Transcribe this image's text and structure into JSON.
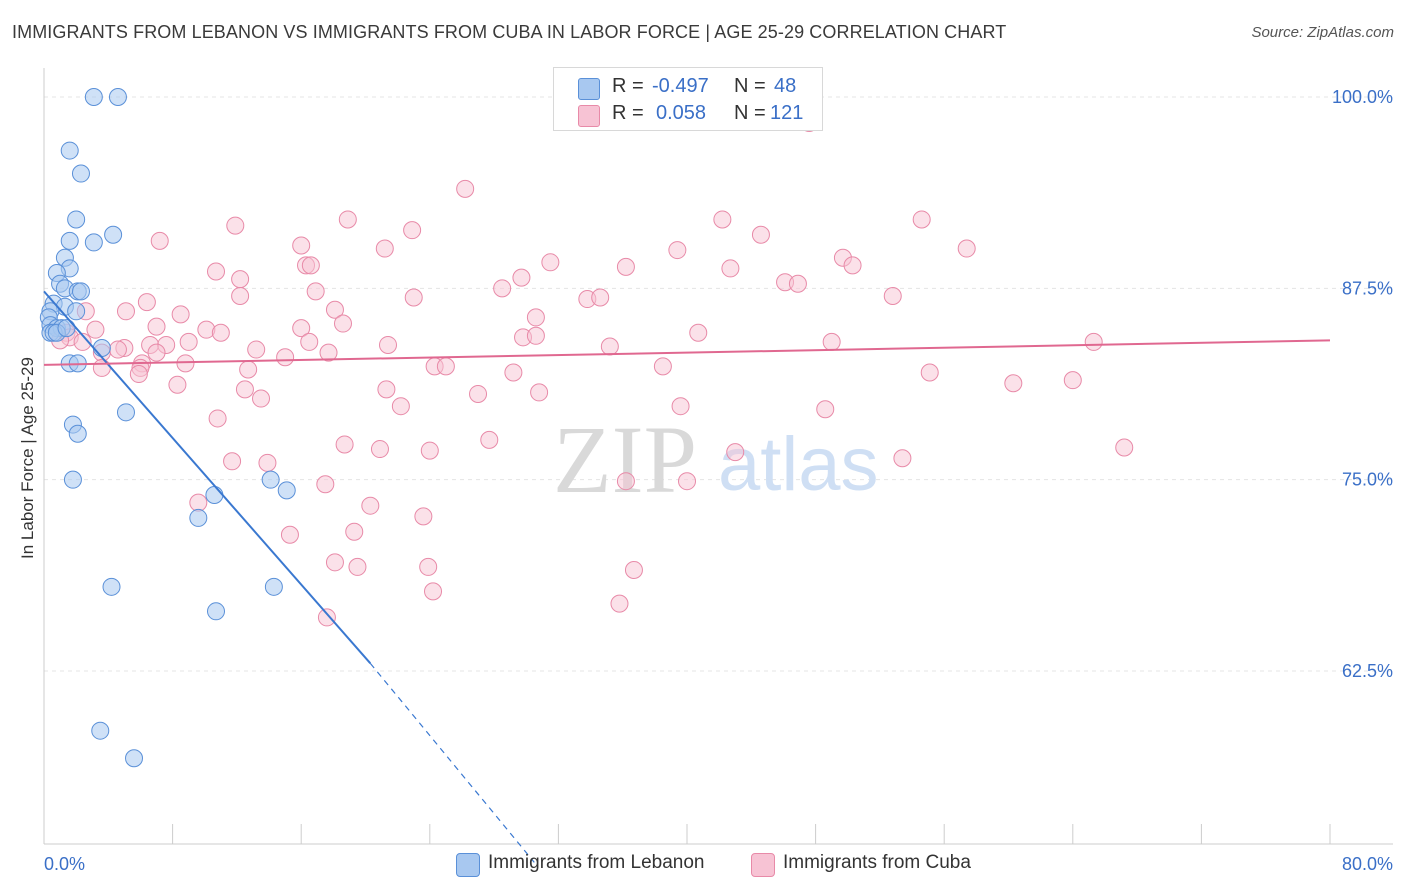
{
  "title": "IMMIGRANTS FROM LEBANON VS IMMIGRANTS FROM CUBA IN LABOR FORCE | AGE 25-29 CORRELATION CHART",
  "source": "Source: ZipAtlas.com",
  "watermark": {
    "zip": "ZIP",
    "atlas": "atlas"
  },
  "colors": {
    "lebanon_fill": "#a8c8f0",
    "lebanon_stroke": "#5a90d8",
    "lebanon_line": "#3a78d0",
    "cuba_fill": "#f7c3d4",
    "cuba_stroke": "#e88aa8",
    "cuba_line": "#e06890",
    "axis_text": "#3a6fc7",
    "grid": "#e4e4e4"
  },
  "legend": {
    "rows": [
      {
        "r_label": "R =",
        "r_value": "-0.497",
        "n_label": "N =",
        "n_value": "48"
      },
      {
        "r_label": "R =",
        "r_value": "0.058",
        "n_label": "N =",
        "n_value": "121"
      }
    ]
  },
  "bottom_legend": [
    {
      "label": "Immigrants from Lebanon"
    },
    {
      "label": "Immigrants from Cuba"
    }
  ],
  "chart_data": {
    "type": "scatter",
    "title": "IMMIGRANTS FROM LEBANON VS IMMIGRANTS FROM CUBA IN LABOR FORCE | AGE 25-29 CORRELATION CHART",
    "xlabel": "",
    "ylabel": "In Labor Force | Age 25-29",
    "xlim": [
      0,
      80
    ],
    "ylim": [
      50,
      101
    ],
    "x_tick_labels": [
      "0.0%",
      "80.0%"
    ],
    "y_tick_labels": [
      "100.0%",
      "87.5%",
      "75.0%",
      "62.5%"
    ],
    "y_ticks": [
      100,
      87.5,
      75,
      62.5
    ],
    "grid": true,
    "series": [
      {
        "name": "Immigrants from Lebanon",
        "points": [
          [
            3.1,
            100
          ],
          [
            4.6,
            100
          ],
          [
            1.6,
            96.5
          ],
          [
            2.3,
            95
          ],
          [
            2.0,
            92
          ],
          [
            4.3,
            91
          ],
          [
            1.6,
            90.6
          ],
          [
            3.1,
            90.5
          ],
          [
            1.3,
            89.5
          ],
          [
            1.6,
            88.8
          ],
          [
            0.8,
            88.5
          ],
          [
            1.0,
            87.8
          ],
          [
            1.3,
            87.5
          ],
          [
            2.1,
            87.3
          ],
          [
            2.3,
            87.3
          ],
          [
            0.6,
            86.5
          ],
          [
            1.3,
            86.3
          ],
          [
            0.4,
            86
          ],
          [
            2.0,
            86
          ],
          [
            0.3,
            85.6
          ],
          [
            0.4,
            85.1
          ],
          [
            0.8,
            84.9
          ],
          [
            1.1,
            84.9
          ],
          [
            0.4,
            84.6
          ],
          [
            0.6,
            84.6
          ],
          [
            0.8,
            84.6
          ],
          [
            1.4,
            84.9
          ],
          [
            3.6,
            83.6
          ],
          [
            1.6,
            82.6
          ],
          [
            2.1,
            82.6
          ],
          [
            5.1,
            79.4
          ],
          [
            1.8,
            78.6
          ],
          [
            2.1,
            78
          ],
          [
            1.8,
            75
          ],
          [
            14.1,
            75
          ],
          [
            15.1,
            74.3
          ],
          [
            10.6,
            74
          ],
          [
            9.6,
            72.5
          ],
          [
            4.2,
            68
          ],
          [
            14.3,
            68
          ],
          [
            10.7,
            66.4
          ],
          [
            3.5,
            58.6
          ],
          [
            5.6,
            56.8
          ]
        ]
      },
      {
        "name": "Immigrants from Cuba",
        "points": [
          [
            47.6,
            98.3
          ],
          [
            26.2,
            94
          ],
          [
            11.9,
            91.6
          ],
          [
            18.9,
            92
          ],
          [
            42.2,
            92
          ],
          [
            54.6,
            92
          ],
          [
            22.9,
            91.3
          ],
          [
            44.6,
            91
          ],
          [
            7.2,
            90.6
          ],
          [
            16.0,
            90.3
          ],
          [
            21.2,
            90.1
          ],
          [
            39.4,
            90
          ],
          [
            57.4,
            90.1
          ],
          [
            49.7,
            89.5
          ],
          [
            31.5,
            89.2
          ],
          [
            16.3,
            89
          ],
          [
            16.6,
            89
          ],
          [
            10.7,
            88.6
          ],
          [
            36.2,
            88.9
          ],
          [
            42.7,
            88.8
          ],
          [
            50.3,
            89
          ],
          [
            29.7,
            88.2
          ],
          [
            12.2,
            88.1
          ],
          [
            46.1,
            87.9
          ],
          [
            46.9,
            87.8
          ],
          [
            28.5,
            87.5
          ],
          [
            16.9,
            87.3
          ],
          [
            52.8,
            87
          ],
          [
            12.2,
            87
          ],
          [
            23.0,
            86.9
          ],
          [
            33.8,
            86.8
          ],
          [
            34.6,
            86.9
          ],
          [
            6.4,
            86.6
          ],
          [
            18.1,
            86.1
          ],
          [
            2.6,
            86
          ],
          [
            5.1,
            86
          ],
          [
            8.5,
            85.8
          ],
          [
            30.6,
            85.6
          ],
          [
            18.6,
            85.2
          ],
          [
            7.0,
            85
          ],
          [
            16.0,
            84.9
          ],
          [
            10.1,
            84.8
          ],
          [
            3.2,
            84.8
          ],
          [
            11.0,
            84.6
          ],
          [
            40.7,
            84.6
          ],
          [
            29.8,
            84.3
          ],
          [
            30.6,
            84.4
          ],
          [
            1.4,
            84.6
          ],
          [
            1.6,
            84.3
          ],
          [
            2.4,
            84
          ],
          [
            9.0,
            84
          ],
          [
            6.6,
            83.8
          ],
          [
            5.0,
            83.6
          ],
          [
            7.6,
            83.8
          ],
          [
            49.0,
            84
          ],
          [
            65.3,
            84
          ],
          [
            21.4,
            83.8
          ],
          [
            16.5,
            84
          ],
          [
            35.2,
            83.7
          ],
          [
            1.0,
            84.1
          ],
          [
            3.6,
            83.3
          ],
          [
            4.6,
            83.5
          ],
          [
            13.2,
            83.5
          ],
          [
            17.7,
            83.3
          ],
          [
            7.0,
            83.3
          ],
          [
            15.0,
            83
          ],
          [
            6.1,
            82.6
          ],
          [
            8.8,
            82.6
          ],
          [
            3.6,
            82.3
          ],
          [
            6.0,
            82.3
          ],
          [
            24.3,
            82.4
          ],
          [
            25.0,
            82.4
          ],
          [
            38.5,
            82.4
          ],
          [
            12.7,
            82.2
          ],
          [
            29.2,
            82
          ],
          [
            5.9,
            81.9
          ],
          [
            55.1,
            82
          ],
          [
            60.3,
            81.3
          ],
          [
            64.0,
            81.5
          ],
          [
            8.3,
            81.2
          ],
          [
            12.5,
            80.9
          ],
          [
            21.3,
            80.9
          ],
          [
            27.0,
            80.6
          ],
          [
            30.8,
            80.7
          ],
          [
            13.5,
            80.3
          ],
          [
            22.2,
            79.8
          ],
          [
            39.6,
            79.8
          ],
          [
            48.6,
            79.6
          ],
          [
            10.8,
            79
          ],
          [
            27.7,
            77.6
          ],
          [
            18.7,
            77.3
          ],
          [
            20.9,
            77
          ],
          [
            24.0,
            76.9
          ],
          [
            43.0,
            76.8
          ],
          [
            67.2,
            77.1
          ],
          [
            53.4,
            76.4
          ],
          [
            11.7,
            76.2
          ],
          [
            13.9,
            76.1
          ],
          [
            17.5,
            74.7
          ],
          [
            36.2,
            74.9
          ],
          [
            40.0,
            74.9
          ],
          [
            9.6,
            73.5
          ],
          [
            20.3,
            73.3
          ],
          [
            23.6,
            72.6
          ],
          [
            19.3,
            71.6
          ],
          [
            15.3,
            71.4
          ],
          [
            18.1,
            69.6
          ],
          [
            19.5,
            69.3
          ],
          [
            23.9,
            69.3
          ],
          [
            36.7,
            69.1
          ],
          [
            24.2,
            67.7
          ],
          [
            35.8,
            66.9
          ],
          [
            17.6,
            66
          ]
        ]
      }
    ],
    "trend_lines": [
      {
        "series": "Immigrants from Lebanon",
        "solid_from": [
          0,
          87.3
        ],
        "solid_to": [
          20.3,
          63
        ],
        "dashed_to": [
          30.5,
          50
        ]
      },
      {
        "series": "Immigrants from Cuba",
        "from": [
          0,
          82.5
        ],
        "to": [
          80,
          84.1
        ]
      }
    ]
  }
}
